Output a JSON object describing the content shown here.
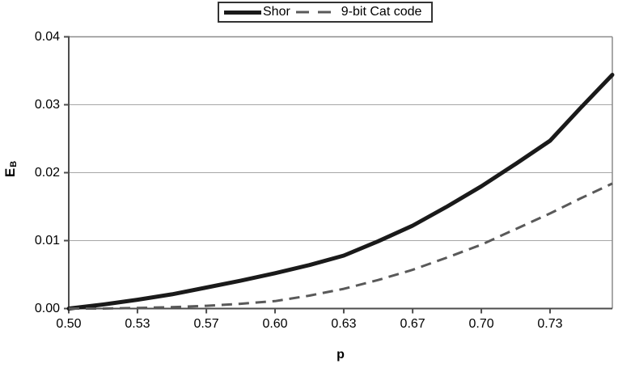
{
  "chart_data": {
    "type": "line",
    "title": "",
    "xlabel": "p",
    "ylabel": "EB",
    "ylabel_main": "E",
    "ylabel_sub": "B",
    "xlim": [
      0.5,
      0.7635
    ],
    "ylim": [
      0,
      0.04
    ],
    "grid": "horizontal-only",
    "legend_position": "top-center",
    "x_ticks": [
      {
        "value": 0.5,
        "label": "0.50"
      },
      {
        "value": 0.5333,
        "label": "0.53"
      },
      {
        "value": 0.5667,
        "label": "0.57"
      },
      {
        "value": 0.6,
        "label": "0.60"
      },
      {
        "value": 0.6333,
        "label": "0.63"
      },
      {
        "value": 0.6667,
        "label": "0.67"
      },
      {
        "value": 0.7,
        "label": "0.70"
      },
      {
        "value": 0.7333,
        "label": "0.73"
      }
    ],
    "y_ticks": [
      {
        "value": 0,
        "label": "0.00"
      },
      {
        "value": 0.01,
        "label": "0.01"
      },
      {
        "value": 0.02,
        "label": "0.02"
      },
      {
        "value": 0.03,
        "label": "0.03"
      },
      {
        "value": 0.04,
        "label": "0.04"
      }
    ],
    "x": [
      0.5,
      0.5167,
      0.5333,
      0.55,
      0.5667,
      0.5833,
      0.6,
      0.6167,
      0.6333,
      0.65,
      0.6667,
      0.6833,
      0.7,
      0.7167,
      0.7333,
      0.748,
      0.7635
    ],
    "series": [
      {
        "name": "Shor",
        "line_style": "solid",
        "color": "#1a1a1a",
        "stroke_width": 5,
        "values": [
          0.0,
          0.0006,
          0.0013,
          0.0021,
          0.0031,
          0.0041,
          0.0052,
          0.0064,
          0.0078,
          0.0099,
          0.0122,
          0.015,
          0.018,
          0.0213,
          0.0247,
          0.0295,
          0.0344
        ]
      },
      {
        "name": "9-bit Cat code",
        "line_style": "dashed",
        "color": "#595959",
        "stroke_width": 3,
        "values": [
          0.0,
          0.0,
          0.0001,
          0.0002,
          0.0004,
          0.0007,
          0.0011,
          0.0019,
          0.0029,
          0.0042,
          0.0057,
          0.0075,
          0.0094,
          0.0117,
          0.014,
          0.0162,
          0.0184
        ]
      }
    ],
    "axis_colors": {
      "axis": "#4d4d4d",
      "gridline": "#a6a6a6",
      "border": "#8c8c8c",
      "text": "#000000"
    }
  }
}
